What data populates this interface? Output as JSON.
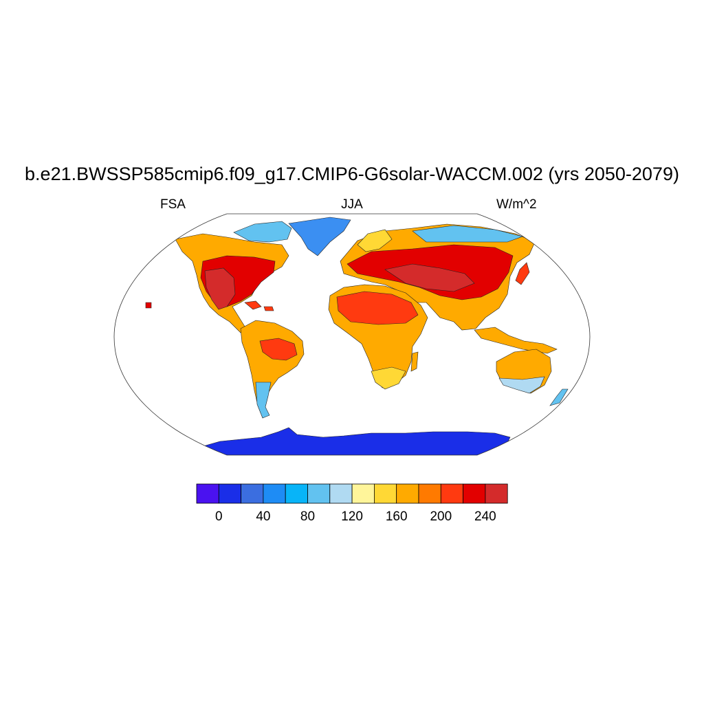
{
  "header": {
    "title": "b.e21.BWSSP585cmip6.f09_g17.CMIP6-G6solar-WACCM.002 (yrs 2050-2079)",
    "left_label": "FSA",
    "center_label": "JJA",
    "right_label": "W/m^2"
  },
  "colorbar": {
    "colors": [
      "#4a12f0",
      "#1a2ee8",
      "#3b6ee0",
      "#1e8cf5",
      "#08b4f8",
      "#62c2f0",
      "#b0daf2",
      "#fff59a",
      "#ffd835",
      "#ffaa00",
      "#ff7a00",
      "#ff3a10",
      "#e20000",
      "#d42b2b"
    ],
    "tick_labels": [
      "0",
      "40",
      "80",
      "120",
      "160",
      "200",
      "240"
    ],
    "tick_values": [
      0,
      40,
      80,
      120,
      160,
      200,
      240
    ]
  },
  "map": {
    "projection": "Robinson",
    "colors": {
      "antarctica": "#1a2ee8",
      "greenland": "#3b8ff2",
      "subpolar": "#62c2f0",
      "cold": "#b0daf2",
      "mid_low": "#ffd835",
      "mid": "#ffaa00",
      "warm": "#ff7a00",
      "hot": "#ff3a10",
      "very_hot": "#e20000",
      "max": "#d42b2b"
    }
  }
}
